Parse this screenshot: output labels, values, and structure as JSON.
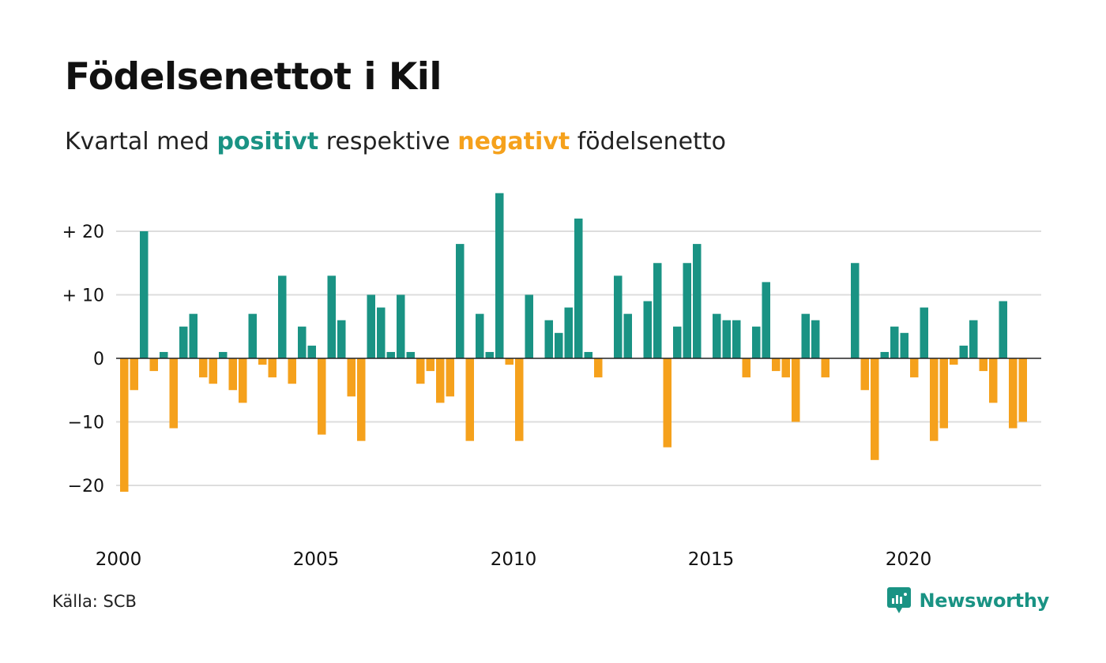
{
  "header": {
    "title": "Födelsenettot i Kil",
    "subtitle_prefix": "Kvartal med",
    "subtitle_positive": "positivt",
    "subtitle_middle": "respektive",
    "subtitle_negative": "negativt",
    "subtitle_suffix": "födelsenetto"
  },
  "footer": {
    "source": "Källa: SCB",
    "brand": "Newsworthy"
  },
  "colors": {
    "positive": "#1a9384",
    "negative": "#f5a11c",
    "grid": "#dddddd",
    "zero_line": "#222222"
  },
  "chart_data": {
    "type": "bar",
    "title": "Födelsenettot i Kil",
    "subtitle": "Kvartal med positivt respektive negativt födelsenetto",
    "xlabel": "",
    "ylabel": "",
    "ylim": [
      -23,
      27
    ],
    "y_ticks": [
      {
        "value": 20,
        "label": "+ 20"
      },
      {
        "value": 10,
        "label": "+ 10"
      },
      {
        "value": 0,
        "label": "0"
      },
      {
        "value": -10,
        "label": "−10"
      },
      {
        "value": -20,
        "label": "−20"
      }
    ],
    "x_ticks": [
      {
        "year": 2000,
        "label": "2000"
      },
      {
        "year": 2005,
        "label": "2005"
      },
      {
        "year": 2010,
        "label": "2010"
      },
      {
        "year": 2015,
        "label": "2015"
      },
      {
        "year": 2020,
        "label": "2020"
      }
    ],
    "grid": true,
    "start_year": 2000,
    "periods_per_year": 4,
    "values": [
      -21,
      -5,
      20,
      -2,
      1,
      -11,
      5,
      7,
      -3,
      -4,
      1,
      -5,
      -7,
      7,
      -1,
      -3,
      13,
      -4,
      5,
      2,
      -12,
      13,
      6,
      -6,
      -13,
      10,
      8,
      1,
      10,
      1,
      -4,
      -2,
      -7,
      -6,
      18,
      -13,
      7,
      1,
      26,
      -1,
      -13,
      10,
      0,
      6,
      4,
      8,
      22,
      1,
      -3,
      0,
      13,
      7,
      0,
      9,
      15,
      -14,
      5,
      15,
      18,
      0,
      7,
      6,
      6,
      -3,
      5,
      12,
      -2,
      -3,
      -10,
      7,
      6,
      -3,
      0,
      0,
      15,
      -5,
      -16,
      1,
      5,
      4,
      -3,
      8,
      -13,
      -11,
      -1,
      2,
      6,
      -2,
      -7,
      9,
      -11,
      -10
    ]
  }
}
